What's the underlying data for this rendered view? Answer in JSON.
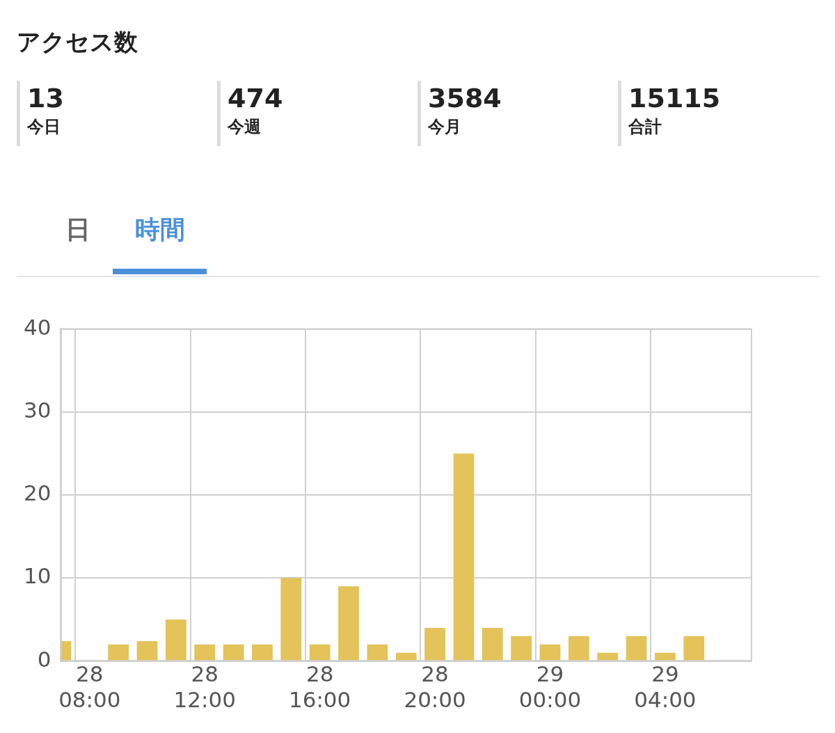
{
  "chart_data": [
    {
      "type": "other",
      "title": "アクセス数",
      "categories": [
        "今日",
        "今週",
        "今月",
        "合計"
      ],
      "values": [
        13,
        474,
        3584,
        15115
      ],
      "data_labels": true
    },
    {
      "type": "bar",
      "annotations": [
        "日",
        "時間"
      ],
      "categories": [
        null,
        "28\n08:00",
        null,
        null,
        null,
        "28\n12:00",
        null,
        null,
        null,
        "28\n16:00",
        null,
        null,
        null,
        "28\n20:00",
        null,
        null,
        null,
        "29\n00:00",
        null,
        null,
        null,
        "29\n04:00",
        null,
        null,
        null
      ],
      "values": [
        2.4,
        0,
        2,
        2.4,
        5,
        2,
        2,
        2,
        10,
        2,
        9,
        2,
        1,
        4,
        25,
        4,
        3,
        2,
        3,
        1,
        3,
        1,
        3,
        null,
        null
      ],
      "color": "#e3c35a",
      "ylim": [
        0,
        40
      ],
      "yticks": [
        0,
        10,
        20,
        30,
        40
      ],
      "grid": true
    }
  ]
}
